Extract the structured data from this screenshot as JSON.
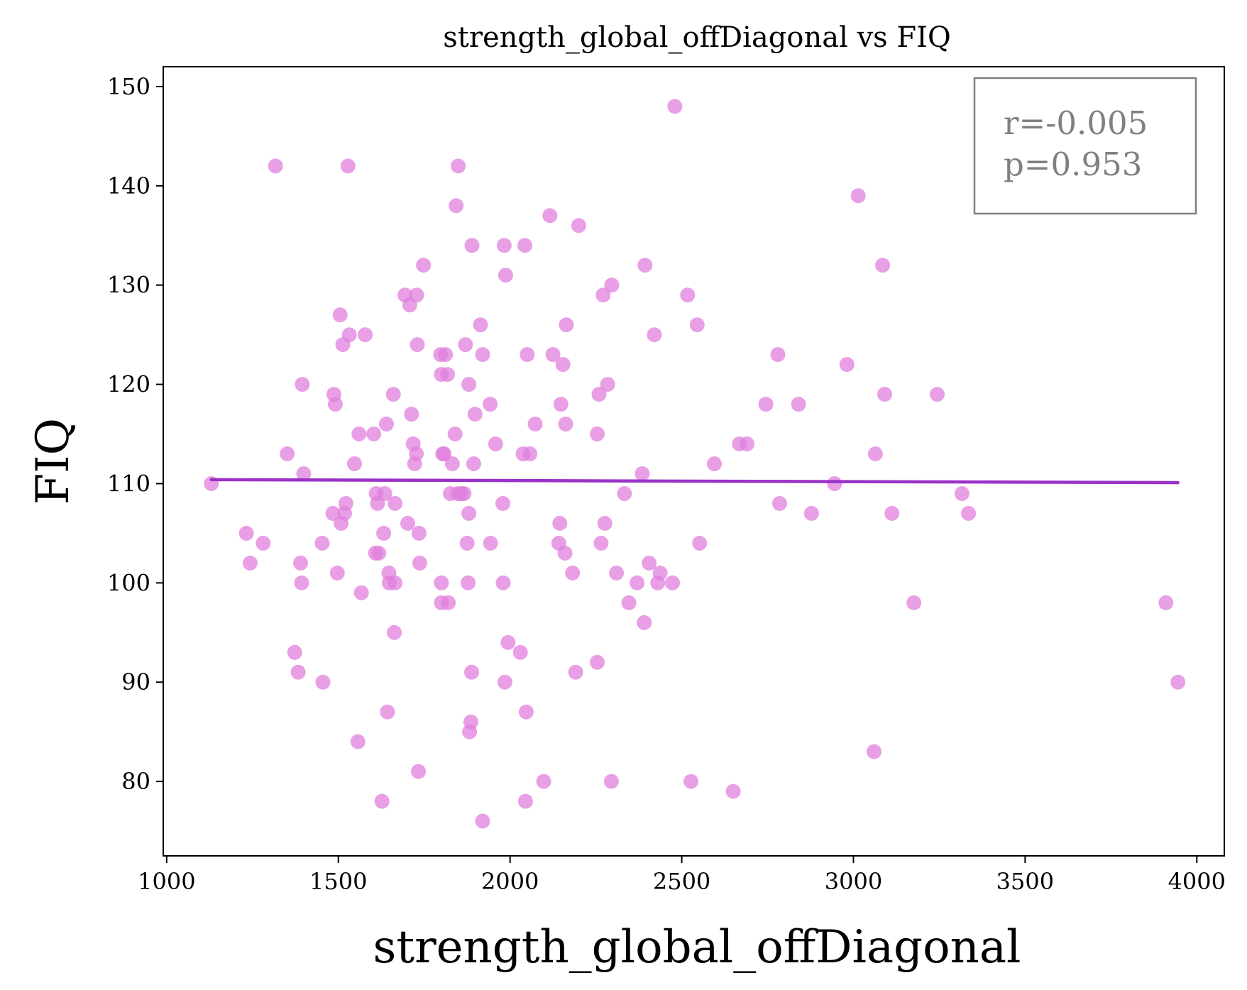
{
  "chart_data": {
    "type": "scatter",
    "title": "strength_global_offDiagonal vs FIQ",
    "xlabel": "strength_global_offDiagonal",
    "ylabel": "FIQ",
    "xlim": [
      990,
      4080
    ],
    "ylim": [
      72.5,
      152
    ],
    "xticks": [
      1000,
      1500,
      2000,
      2500,
      3000,
      3500,
      4000
    ],
    "yticks": [
      80,
      90,
      100,
      110,
      120,
      130,
      140,
      150
    ],
    "grid": false,
    "point_color": "#e07fdc",
    "line_color": "#9a32c8",
    "fit_line": {
      "x": [
        1130,
        3945
      ],
      "y": [
        110.4,
        110.1
      ]
    },
    "annotation": {
      "r": "r=-0.005",
      "p": "p=0.953",
      "color": "#808080",
      "placement": "top-right"
    },
    "points": [
      [
        1130,
        110
      ],
      [
        1232,
        105
      ],
      [
        1243,
        102
      ],
      [
        1281,
        104
      ],
      [
        1317,
        142
      ],
      [
        1351,
        113
      ],
      [
        1373,
        93
      ],
      [
        1383,
        91
      ],
      [
        1390,
        102
      ],
      [
        1393,
        100
      ],
      [
        1395,
        120
      ],
      [
        1399,
        111
      ],
      [
        1453,
        104
      ],
      [
        1455,
        90
      ],
      [
        1484,
        107
      ],
      [
        1487,
        119
      ],
      [
        1491,
        118
      ],
      [
        1497,
        101
      ],
      [
        1505,
        127
      ],
      [
        1508,
        106
      ],
      [
        1513,
        124
      ],
      [
        1518,
        107
      ],
      [
        1522,
        108
      ],
      [
        1528,
        142
      ],
      [
        1532,
        125
      ],
      [
        1547,
        112
      ],
      [
        1557,
        84
      ],
      [
        1560,
        115
      ],
      [
        1567,
        99
      ],
      [
        1578,
        125
      ],
      [
        1603,
        115
      ],
      [
        1608,
        103
      ],
      [
        1610,
        109
      ],
      [
        1614,
        108
      ],
      [
        1618,
        103
      ],
      [
        1627,
        78
      ],
      [
        1632,
        105
      ],
      [
        1635,
        109
      ],
      [
        1640,
        116
      ],
      [
        1643,
        87
      ],
      [
        1647,
        101
      ],
      [
        1648,
        100
      ],
      [
        1660,
        119
      ],
      [
        1663,
        95
      ],
      [
        1665,
        108
      ],
      [
        1665,
        100
      ],
      [
        1694,
        129
      ],
      [
        1702,
        106
      ],
      [
        1708,
        128
      ],
      [
        1713,
        117
      ],
      [
        1718,
        114
      ],
      [
        1722,
        112
      ],
      [
        1727,
        113
      ],
      [
        1728,
        129
      ],
      [
        1730,
        124
      ],
      [
        1733,
        81
      ],
      [
        1735,
        105
      ],
      [
        1737,
        102
      ],
      [
        1748,
        132
      ],
      [
        1798,
        123
      ],
      [
        1800,
        121
      ],
      [
        1800,
        100
      ],
      [
        1800,
        98
      ],
      [
        1804,
        113
      ],
      [
        1808,
        113
      ],
      [
        1812,
        123
      ],
      [
        1818,
        121
      ],
      [
        1820,
        98
      ],
      [
        1826,
        109
      ],
      [
        1832,
        112
      ],
      [
        1840,
        115
      ],
      [
        1843,
        138
      ],
      [
        1848,
        109
      ],
      [
        1849,
        142
      ],
      [
        1858,
        109
      ],
      [
        1866,
        109
      ],
      [
        1870,
        124
      ],
      [
        1875,
        104
      ],
      [
        1878,
        100
      ],
      [
        1880,
        120
      ],
      [
        1880,
        107
      ],
      [
        1882,
        85
      ],
      [
        1886,
        86
      ],
      [
        1888,
        91
      ],
      [
        1889,
        134
      ],
      [
        1894,
        112
      ],
      [
        1898,
        117
      ],
      [
        1914,
        126
      ],
      [
        1920,
        76
      ],
      [
        1920,
        123
      ],
      [
        1942,
        118
      ],
      [
        1943,
        104
      ],
      [
        1958,
        114
      ],
      [
        1979,
        108
      ],
      [
        1980,
        100
      ],
      [
        1983,
        134
      ],
      [
        1985,
        90
      ],
      [
        1987,
        131
      ],
      [
        1994,
        94
      ],
      [
        2030,
        93
      ],
      [
        2038,
        113
      ],
      [
        2043,
        134
      ],
      [
        2045,
        78
      ],
      [
        2047,
        87
      ],
      [
        2050,
        123
      ],
      [
        2058,
        113
      ],
      [
        2073,
        116
      ],
      [
        2098,
        80
      ],
      [
        2116,
        137
      ],
      [
        2125,
        123
      ],
      [
        2142,
        104
      ],
      [
        2145,
        106
      ],
      [
        2148,
        118
      ],
      [
        2154,
        122
      ],
      [
        2160,
        103
      ],
      [
        2162,
        116
      ],
      [
        2164,
        126
      ],
      [
        2182,
        101
      ],
      [
        2191,
        91
      ],
      [
        2200,
        136
      ],
      [
        2254,
        92
      ],
      [
        2254,
        115
      ],
      [
        2259,
        119
      ],
      [
        2265,
        104
      ],
      [
        2271,
        129
      ],
      [
        2276,
        106
      ],
      [
        2284,
        120
      ],
      [
        2295,
        80
      ],
      [
        2296,
        130
      ],
      [
        2310,
        101
      ],
      [
        2333,
        109
      ],
      [
        2346,
        98
      ],
      [
        2370,
        100
      ],
      [
        2385,
        111
      ],
      [
        2391,
        96
      ],
      [
        2393,
        132
      ],
      [
        2405,
        102
      ],
      [
        2420,
        125
      ],
      [
        2430,
        100
      ],
      [
        2437,
        101
      ],
      [
        2473,
        100
      ],
      [
        2480,
        148
      ],
      [
        2517,
        129
      ],
      [
        2527,
        80
      ],
      [
        2545,
        126
      ],
      [
        2552,
        104
      ],
      [
        2595,
        112
      ],
      [
        2650,
        79
      ],
      [
        2668,
        114
      ],
      [
        2690,
        114
      ],
      [
        2745,
        118
      ],
      [
        2780,
        123
      ],
      [
        2785,
        108
      ],
      [
        2840,
        118
      ],
      [
        2878,
        107
      ],
      [
        2945,
        110
      ],
      [
        2981,
        122
      ],
      [
        3014,
        139
      ],
      [
        3060,
        83
      ],
      [
        3064,
        113
      ],
      [
        3085,
        132
      ],
      [
        3091,
        119
      ],
      [
        3112,
        107
      ],
      [
        3176,
        98
      ],
      [
        3244,
        119
      ],
      [
        3316,
        109
      ],
      [
        3335,
        107
      ],
      [
        3910,
        98
      ],
      [
        3945,
        90
      ]
    ]
  }
}
